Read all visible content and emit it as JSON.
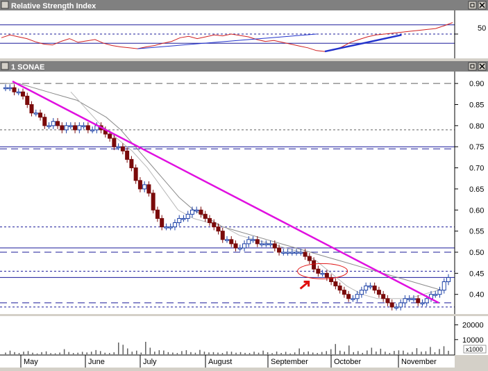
{
  "rsi_panel": {
    "title": "Relative Strength Index",
    "level_label": "50"
  },
  "price_panel": {
    "title": "1 SONAE"
  },
  "volume_panel": {
    "multiplier_label": "x1000"
  },
  "x_axis": {
    "months": [
      "May",
      "June",
      "July",
      "August",
      "September",
      "October",
      "November"
    ]
  },
  "colors": {
    "window_bg": "#ffffff",
    "chrome": "#d4d0c8",
    "titlebar_text": "#ffffff",
    "up_candle": "#1a3fa6",
    "down_candle": "#7a0a0a",
    "trendline": "#e010e0",
    "rsi_line": "#d02020",
    "rsi_trendline": "#2233cc",
    "ma_line": "#8a8a8a",
    "guide_line": "#1a1a9a",
    "annotation": "#e01010"
  },
  "chart_data": [
    {
      "type": "line",
      "title": "Relative Strength Index",
      "yticks": [
        50
      ],
      "ylim": [
        0,
        100
      ],
      "reference_lines": [
        50,
        70,
        30
      ],
      "approx_values": [
        42,
        48,
        44,
        40,
        33,
        28,
        26,
        34,
        40,
        32,
        35,
        38,
        30,
        25,
        22,
        20,
        18,
        22,
        25,
        30,
        34,
        42,
        45,
        40,
        44,
        48,
        46,
        50,
        47,
        44,
        38,
        34,
        36,
        32,
        28,
        24,
        20,
        14,
        12,
        15,
        22,
        32,
        38,
        44,
        48,
        50,
        52,
        54,
        56,
        58,
        60,
        62,
        68,
        75
      ]
    },
    {
      "type": "candlestick",
      "title": "1 SONAE",
      "xlabel": "",
      "ylabel": "",
      "x_months": [
        "May",
        "June",
        "July",
        "August",
        "September",
        "October",
        "November"
      ],
      "yticks": [
        0.9,
        0.85,
        0.8,
        0.75,
        0.7,
        0.65,
        0.6,
        0.55,
        0.5,
        0.45,
        0.4
      ],
      "ylim": [
        0.36,
        0.92
      ],
      "close_series": [
        0.89,
        0.89,
        0.88,
        0.88,
        0.87,
        0.85,
        0.83,
        0.83,
        0.82,
        0.8,
        0.8,
        0.81,
        0.8,
        0.79,
        0.8,
        0.8,
        0.79,
        0.8,
        0.8,
        0.79,
        0.79,
        0.8,
        0.79,
        0.78,
        0.77,
        0.75,
        0.75,
        0.74,
        0.72,
        0.7,
        0.67,
        0.65,
        0.66,
        0.64,
        0.6,
        0.58,
        0.56,
        0.56,
        0.56,
        0.57,
        0.58,
        0.58,
        0.59,
        0.6,
        0.6,
        0.59,
        0.58,
        0.57,
        0.56,
        0.55,
        0.53,
        0.53,
        0.52,
        0.51,
        0.51,
        0.52,
        0.53,
        0.53,
        0.52,
        0.52,
        0.52,
        0.52,
        0.51,
        0.5,
        0.5,
        0.5,
        0.5,
        0.5,
        0.5,
        0.49,
        0.48,
        0.46,
        0.45,
        0.45,
        0.44,
        0.43,
        0.42,
        0.41,
        0.4,
        0.39,
        0.39,
        0.4,
        0.41,
        0.42,
        0.42,
        0.41,
        0.4,
        0.39,
        0.38,
        0.37,
        0.37,
        0.38,
        0.39,
        0.39,
        0.39,
        0.38,
        0.38,
        0.39,
        0.4,
        0.4,
        0.41,
        0.43,
        0.44
      ],
      "moving_average_slow": [
        0.9,
        0.9,
        0.89,
        0.88,
        0.87,
        0.86,
        0.84,
        0.82,
        0.79,
        0.75,
        0.71,
        0.67,
        0.63,
        0.6,
        0.58,
        0.56,
        0.55,
        0.54,
        0.53,
        0.52,
        0.51,
        0.5,
        0.49,
        0.48,
        0.47,
        0.46,
        0.45,
        0.44,
        0.43,
        0.42,
        0.41
      ],
      "moving_average_fast": [
        0.88,
        0.84,
        0.8,
        0.77,
        0.74,
        0.7,
        0.65,
        0.6,
        0.58,
        0.57,
        0.56,
        0.54,
        0.53,
        0.52,
        0.51,
        0.5,
        0.48,
        0.45,
        0.42,
        0.4,
        0.39,
        0.39,
        0.39,
        0.4,
        0.41
      ],
      "trendline": [
        [
          0,
          0.905
        ],
        [
          100,
          0.38
        ]
      ],
      "horizontal_levels": [
        0.9,
        0.79,
        0.75,
        0.745,
        0.56,
        0.51,
        0.5,
        0.455,
        0.44,
        0.38,
        0.37
      ]
    },
    {
      "type": "bar",
      "title": "",
      "yticks": [
        20000,
        10000
      ],
      "ylim": [
        0,
        25000
      ],
      "values": [
        1200,
        2500,
        1500,
        900,
        1800,
        2200,
        1100,
        600,
        1500,
        2000,
        800,
        700,
        1200,
        3500,
        1600,
        900,
        1100,
        1700,
        1300,
        1800,
        2900,
        2200,
        1100,
        900,
        1400,
        8000,
        6500,
        4000,
        1800,
        2500,
        1200,
        8500,
        4500,
        1800,
        2800,
        2600,
        1500,
        1200,
        900,
        2200,
        2800,
        1500,
        1100,
        3000,
        1800,
        1300,
        1500,
        1200,
        900,
        2000,
        1800,
        1100,
        1500,
        1000,
        900,
        1800,
        1100,
        2500,
        1400,
        800,
        1900,
        900,
        1700,
        600,
        1300,
        4000,
        1500,
        2000,
        1200,
        900,
        1600,
        2200,
        3500,
        7000,
        2500,
        1800,
        6000,
        1500,
        2200,
        1000,
        2600,
        4500,
        1900,
        3800,
        1800,
        900,
        2300,
        2700,
        2500,
        1200,
        1600,
        4200,
        1800,
        2100,
        5000,
        1400,
        3600,
        5500,
        2400
      ]
    }
  ]
}
